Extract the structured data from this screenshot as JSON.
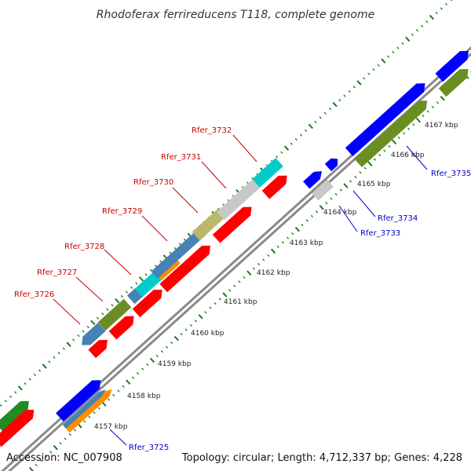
{
  "title": "Rhodoferax ferrireducens T118, complete genome",
  "footer": {
    "accession": "Accession: NC_007908",
    "summary": "Topology: circular; Length: 4,712,337 bp; Genes: 4,228"
  },
  "colors": {
    "backbone": "#8a8a8a",
    "tick_minor": "#2e8b2e",
    "label_red": "#cc0000",
    "label_blue": "#0000cc",
    "red": "#ff0000",
    "blue": "#0000ff",
    "olive": "#6b8e23",
    "steel": "#4682b4",
    "cyan": "#00cccc",
    "gray": "#c8c8c8",
    "khaki": "#bdb76b",
    "orange": "#ff8c00",
    "green": "#228b22"
  },
  "ticks": [
    "4157 kbp",
    "4158 kbp",
    "4159 kbp",
    "4160 kbp",
    "4161 kbp",
    "4162 kbp",
    "4163 kbp",
    "4164 kbp",
    "4165 kbp",
    "4166 kbp",
    "4167 kbp"
  ],
  "gene_labels": [
    {
      "name": "Rfer_3732",
      "color": "label_red"
    },
    {
      "name": "Rfer_3731",
      "color": "label_red"
    },
    {
      "name": "Rfer_3730",
      "color": "label_red"
    },
    {
      "name": "Rfer_3729",
      "color": "label_red"
    },
    {
      "name": "Rfer_3728",
      "color": "label_red"
    },
    {
      "name": "Rfer_3727",
      "color": "label_red"
    },
    {
      "name": "Rfer_3726",
      "color": "label_red"
    },
    {
      "name": "Rfer_3735",
      "color": "label_blue"
    },
    {
      "name": "Rfer_3734",
      "color": "label_blue"
    },
    {
      "name": "Rfer_3733",
      "color": "label_blue"
    },
    {
      "name": "Rfer_3725",
      "color": "label_blue"
    }
  ]
}
